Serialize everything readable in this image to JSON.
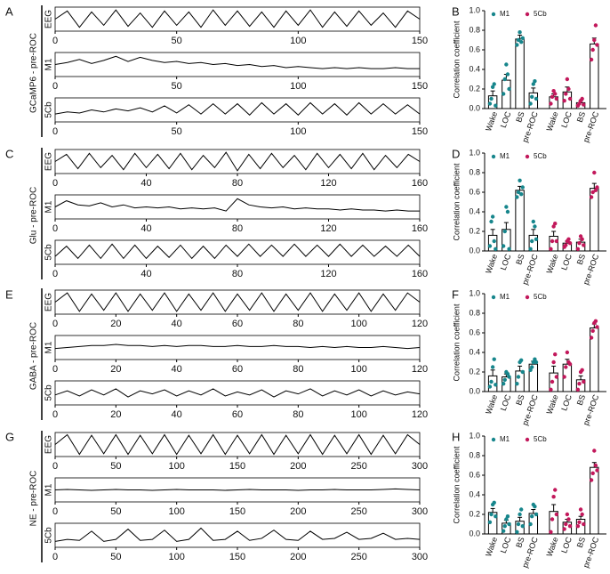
{
  "chart_data": [
    {
      "type": "trace",
      "panel": "A",
      "ylabel": "GCaMP6 - pre-ROC",
      "xlim": [
        0,
        150
      ],
      "xticks": [
        0,
        50,
        100,
        150
      ],
      "ylim": [
        0,
        1
      ],
      "x": [
        0,
        5,
        10,
        15,
        20,
        25,
        30,
        35,
        40,
        45,
        50,
        55,
        60,
        65,
        70,
        75,
        80,
        85,
        90,
        95,
        100,
        105,
        110,
        115,
        120,
        125,
        130,
        135,
        140,
        145,
        150
      ],
      "series": [
        {
          "name": "EEG",
          "values": [
            0.5,
            0.9,
            0.1,
            0.85,
            0.2,
            0.95,
            0.15,
            0.8,
            0.1,
            0.9,
            0.2,
            0.85,
            0.1,
            0.95,
            0.2,
            0.9,
            0.15,
            0.85,
            0.1,
            0.9,
            0.2,
            0.95,
            0.1,
            0.85,
            0.15,
            0.9,
            0.2,
            0.8,
            0.1,
            0.9,
            0.5
          ]
        },
        {
          "name": "M1",
          "values": [
            0.5,
            0.6,
            0.75,
            0.55,
            0.7,
            0.9,
            0.65,
            0.85,
            0.7,
            0.6,
            0.65,
            0.55,
            0.6,
            0.5,
            0.55,
            0.45,
            0.5,
            0.4,
            0.45,
            0.35,
            0.4,
            0.35,
            0.3,
            0.35,
            0.3,
            0.35,
            0.3,
            0.3,
            0.35,
            0.3,
            0.3
          ]
        },
        {
          "name": "5Cb",
          "values": [
            0.3,
            0.4,
            0.35,
            0.5,
            0.4,
            0.55,
            0.45,
            0.6,
            0.4,
            0.7,
            0.35,
            0.75,
            0.3,
            0.8,
            0.3,
            0.8,
            0.25,
            0.85,
            0.3,
            0.8,
            0.25,
            0.85,
            0.3,
            0.8,
            0.25,
            0.85,
            0.3,
            0.8,
            0.3,
            0.75,
            0.3
          ]
        }
      ]
    },
    {
      "type": "bar",
      "panel": "B",
      "ylabel": "Correlation coefficient",
      "ylim": [
        0,
        1
      ],
      "yticks": [
        {
          "value": 0,
          "label": "0.0"
        },
        0.2,
        0.4,
        0.6,
        0.8,
        {
          "value": 1,
          "label": "1.0"
        }
      ],
      "categories": [
        "Wake",
        "LOC",
        "BS",
        "pre-ROC"
      ],
      "series": [
        {
          "name": "M1",
          "color": "#17868c",
          "values": [
            0.13,
            0.29,
            0.71,
            0.16
          ],
          "errors": [
            0.05,
            0.06,
            0.04,
            0.05
          ],
          "points": [
            [
              0.05,
              0.1,
              0.22,
              0.25,
              0.03
            ],
            [
              0.15,
              0.3,
              0.45,
              0.35,
              0.2
            ],
            [
              0.65,
              0.7,
              0.78,
              0.68,
              0.72
            ],
            [
              0.05,
              0.12,
              0.25,
              0.28,
              0.1
            ]
          ]
        },
        {
          "name": "5Cb",
          "color": "#c2185b",
          "values": [
            0.12,
            0.17,
            0.06,
            0.66
          ],
          "errors": [
            0.03,
            0.05,
            0.02,
            0.06
          ],
          "points": [
            [
              0.05,
              0.12,
              0.18,
              0.15,
              0.1
            ],
            [
              0.08,
              0.15,
              0.3,
              0.2,
              0.1
            ],
            [
              0.03,
              0.05,
              0.08,
              0.1,
              0.04
            ],
            [
              0.5,
              0.6,
              0.7,
              0.85,
              0.65
            ]
          ]
        }
      ]
    },
    {
      "type": "trace",
      "panel": "C",
      "ylabel": "Glu - pre-ROC",
      "xlim": [
        0,
        160
      ],
      "xticks": [
        0,
        40,
        80,
        120,
        160
      ],
      "ylim": [
        0,
        1
      ],
      "x": [
        0,
        5,
        10,
        15,
        20,
        25,
        30,
        35,
        40,
        45,
        50,
        55,
        60,
        65,
        70,
        75,
        80,
        85,
        90,
        95,
        100,
        105,
        110,
        115,
        120,
        125,
        130,
        135,
        140,
        145,
        150,
        155,
        160
      ],
      "series": [
        {
          "name": "EEG",
          "values": [
            0.5,
            0.85,
            0.15,
            0.9,
            0.2,
            0.8,
            0.1,
            0.9,
            0.2,
            0.85,
            0.15,
            0.9,
            0.1,
            0.8,
            0.2,
            0.95,
            0.05,
            0.85,
            0.15,
            0.9,
            0.2,
            0.8,
            0.1,
            0.9,
            0.2,
            0.85,
            0.15,
            0.9,
            0.1,
            0.8,
            0.2,
            0.85,
            0.5
          ]
        },
        {
          "name": "M1",
          "values": [
            0.5,
            0.8,
            0.6,
            0.55,
            0.7,
            0.5,
            0.6,
            0.45,
            0.5,
            0.45,
            0.5,
            0.4,
            0.45,
            0.4,
            0.45,
            0.3,
            0.9,
            0.6,
            0.5,
            0.45,
            0.5,
            0.4,
            0.45,
            0.4,
            0.4,
            0.35,
            0.4,
            0.35,
            0.35,
            0.3,
            0.35,
            0.3,
            0.3
          ]
        },
        {
          "name": "5Cb",
          "values": [
            0.3,
            0.8,
            0.2,
            0.85,
            0.2,
            0.9,
            0.2,
            0.85,
            0.2,
            0.8,
            0.25,
            0.85,
            0.2,
            0.8,
            0.2,
            0.85,
            0.3,
            0.9,
            0.3,
            0.85,
            0.3,
            0.9,
            0.3,
            0.85,
            0.3,
            0.9,
            0.3,
            0.85,
            0.3,
            0.8,
            0.3,
            0.85,
            0.3
          ]
        }
      ]
    },
    {
      "type": "bar",
      "panel": "D",
      "ylabel": "Correlation coefficient",
      "ylim": [
        0,
        1
      ],
      "yticks": [
        {
          "value": 0,
          "label": "0.0"
        },
        0.2,
        0.4,
        0.6,
        0.8,
        {
          "value": 1,
          "label": "1.0"
        }
      ],
      "categories": [
        "Wake",
        "LOC",
        "BS",
        "pre-ROC"
      ],
      "series": [
        {
          "name": "M1",
          "color": "#17868c",
          "values": [
            0.16,
            0.22,
            0.62,
            0.16
          ],
          "errors": [
            0.06,
            0.07,
            0.04,
            0.06
          ],
          "points": [
            [
              0.05,
              0.3,
              0.35,
              0.1,
              0.02
            ],
            [
              0.05,
              0.2,
              0.45,
              0.4,
              0.02
            ],
            [
              0.55,
              0.6,
              0.72,
              0.58,
              0.65
            ],
            [
              0.02,
              0.1,
              0.3,
              0.25,
              0.12
            ]
          ]
        },
        {
          "name": "5Cb",
          "color": "#c2185b",
          "values": [
            0.15,
            0.08,
            0.09,
            0.64
          ],
          "errors": [
            0.05,
            0.02,
            0.03,
            0.05
          ],
          "points": [
            [
              0.02,
              0.1,
              0.25,
              0.28,
              0.1
            ],
            [
              0.04,
              0.06,
              0.1,
              0.12,
              0.08
            ],
            [
              0.02,
              0.08,
              0.15,
              0.12,
              0.06
            ],
            [
              0.55,
              0.6,
              0.8,
              0.62,
              0.65
            ]
          ]
        }
      ]
    },
    {
      "type": "trace",
      "panel": "E",
      "ylabel": "GABA - pre-ROC",
      "xlim": [
        0,
        120
      ],
      "xticks": [
        0,
        20,
        40,
        60,
        80,
        100,
        120
      ],
      "ylim": [
        0,
        1
      ],
      "x": [
        0,
        4,
        8,
        12,
        16,
        20,
        24,
        28,
        32,
        36,
        40,
        44,
        48,
        52,
        56,
        60,
        64,
        68,
        72,
        76,
        80,
        84,
        88,
        92,
        96,
        100,
        104,
        108,
        112,
        116,
        120
      ],
      "series": [
        {
          "name": "EEG",
          "values": [
            0.5,
            0.95,
            0.05,
            0.9,
            0.1,
            0.95,
            0.05,
            0.9,
            0.1,
            0.95,
            0.05,
            0.9,
            0.1,
            0.95,
            0.05,
            0.9,
            0.1,
            0.95,
            0.05,
            0.9,
            0.1,
            0.95,
            0.05,
            0.9,
            0.1,
            0.95,
            0.05,
            0.9,
            0.1,
            0.95,
            0.5
          ]
        },
        {
          "name": "M1",
          "values": [
            0.45,
            0.5,
            0.55,
            0.6,
            0.6,
            0.65,
            0.6,
            0.6,
            0.55,
            0.6,
            0.55,
            0.6,
            0.6,
            0.55,
            0.55,
            0.6,
            0.55,
            0.55,
            0.6,
            0.55,
            0.55,
            0.5,
            0.55,
            0.5,
            0.55,
            0.5,
            0.5,
            0.55,
            0.5,
            0.45,
            0.5
          ]
        },
        {
          "name": "5Cb",
          "values": [
            0.4,
            0.6,
            0.35,
            0.65,
            0.4,
            0.7,
            0.3,
            0.6,
            0.45,
            0.65,
            0.35,
            0.6,
            0.4,
            0.7,
            0.35,
            0.55,
            0.4,
            0.65,
            0.3,
            0.6,
            0.45,
            0.7,
            0.35,
            0.6,
            0.4,
            0.65,
            0.35,
            0.6,
            0.4,
            0.55,
            0.45
          ]
        }
      ]
    },
    {
      "type": "bar",
      "panel": "F",
      "ylabel": "Correlation coefficient",
      "ylim": [
        0,
        1
      ],
      "yticks": [
        {
          "value": 0,
          "label": "0.0"
        },
        0.2,
        0.4,
        0.6,
        0.8,
        {
          "value": 1,
          "label": "1.0"
        }
      ],
      "categories": [
        "Wake",
        "LOC",
        "BS",
        "pre-ROC"
      ],
      "series": [
        {
          "name": "M1",
          "color": "#17868c",
          "values": [
            0.16,
            0.15,
            0.21,
            0.28
          ],
          "errors": [
            0.06,
            0.03,
            0.05,
            0.03
          ],
          "points": [
            [
              0.05,
              0.1,
              0.25,
              0.33,
              0.07
            ],
            [
              0.08,
              0.12,
              0.2,
              0.18,
              0.15
            ],
            [
              0.08,
              0.15,
              0.3,
              0.32,
              0.2
            ],
            [
              0.22,
              0.25,
              0.3,
              0.33,
              0.3
            ]
          ]
        },
        {
          "name": "5Cb",
          "color": "#c2185b",
          "values": [
            0.19,
            0.28,
            0.12,
            0.65
          ],
          "errors": [
            0.07,
            0.05,
            0.04,
            0.04
          ],
          "points": [
            [
              0.02,
              0.1,
              0.3,
              0.38,
              0.15
            ],
            [
              0.15,
              0.25,
              0.4,
              0.3,
              0.28
            ],
            [
              0.02,
              0.08,
              0.2,
              0.22,
              0.1
            ],
            [
              0.55,
              0.62,
              0.7,
              0.72,
              0.66
            ]
          ]
        }
      ]
    },
    {
      "type": "trace",
      "panel": "G",
      "ylabel": "NE - pre-ROC",
      "xlim": [
        0,
        300
      ],
      "xticks": [
        0,
        50,
        100,
        150,
        200,
        250,
        300
      ],
      "ylim": [
        0,
        1
      ],
      "x": [
        0,
        10,
        20,
        30,
        40,
        50,
        60,
        70,
        80,
        90,
        100,
        110,
        120,
        130,
        140,
        150,
        160,
        170,
        180,
        190,
        200,
        210,
        220,
        230,
        240,
        250,
        260,
        270,
        280,
        290,
        300
      ],
      "series": [
        {
          "name": "EEG",
          "values": [
            0.5,
            0.98,
            0.02,
            0.95,
            0.05,
            0.98,
            0.02,
            0.95,
            0.05,
            0.98,
            0.02,
            0.95,
            0.05,
            0.98,
            0.02,
            0.95,
            0.05,
            0.98,
            0.02,
            0.95,
            0.05,
            0.98,
            0.02,
            0.95,
            0.05,
            0.98,
            0.02,
            0.95,
            0.05,
            0.98,
            0.5
          ]
        },
        {
          "name": "M1",
          "values": [
            0.5,
            0.52,
            0.5,
            0.48,
            0.5,
            0.52,
            0.5,
            0.5,
            0.48,
            0.5,
            0.52,
            0.5,
            0.5,
            0.5,
            0.48,
            0.5,
            0.52,
            0.5,
            0.5,
            0.5,
            0.48,
            0.5,
            0.5,
            0.52,
            0.5,
            0.5,
            0.5,
            0.52,
            0.55,
            0.52,
            0.5
          ]
        },
        {
          "name": "5Cb",
          "values": [
            0.2,
            0.3,
            0.25,
            0.7,
            0.2,
            0.3,
            0.8,
            0.25,
            0.3,
            0.75,
            0.2,
            0.3,
            0.85,
            0.25,
            0.3,
            0.7,
            0.25,
            0.35,
            0.75,
            0.3,
            0.25,
            0.7,
            0.3,
            0.35,
            0.65,
            0.3,
            0.35,
            0.6,
            0.3,
            0.35,
            0.3
          ]
        }
      ]
    },
    {
      "type": "bar",
      "panel": "H",
      "ylabel": "Correlation coefficient",
      "ylim": [
        0,
        1
      ],
      "yticks": [
        {
          "value": 0,
          "label": "0.0"
        },
        0.2,
        0.4,
        0.6,
        0.8,
        {
          "value": 1,
          "label": "1.0"
        }
      ],
      "categories": [
        "Wake",
        "LOC",
        "BS",
        "pre-ROC"
      ],
      "series": [
        {
          "name": "M1",
          "color": "#17868c",
          "values": [
            0.22,
            0.11,
            0.13,
            0.21
          ],
          "errors": [
            0.04,
            0.03,
            0.04,
            0.04
          ],
          "points": [
            [
              0.12,
              0.2,
              0.3,
              0.32,
              0.18
            ],
            [
              0.03,
              0.08,
              0.15,
              0.18,
              0.1
            ],
            [
              0.02,
              0.1,
              0.2,
              0.25,
              0.08
            ],
            [
              0.1,
              0.18,
              0.3,
              0.28,
              0.2
            ]
          ]
        },
        {
          "name": "5Cb",
          "color": "#c2185b",
          "values": [
            0.23,
            0.12,
            0.15,
            0.68
          ],
          "errors": [
            0.07,
            0.03,
            0.03,
            0.05
          ],
          "points": [
            [
              0.02,
              0.15,
              0.38,
              0.45,
              0.2
            ],
            [
              0.05,
              0.1,
              0.2,
              0.15,
              0.08
            ],
            [
              0.08,
              0.12,
              0.25,
              0.2,
              0.1
            ],
            [
              0.55,
              0.62,
              0.85,
              0.7,
              0.65
            ]
          ]
        }
      ]
    }
  ]
}
